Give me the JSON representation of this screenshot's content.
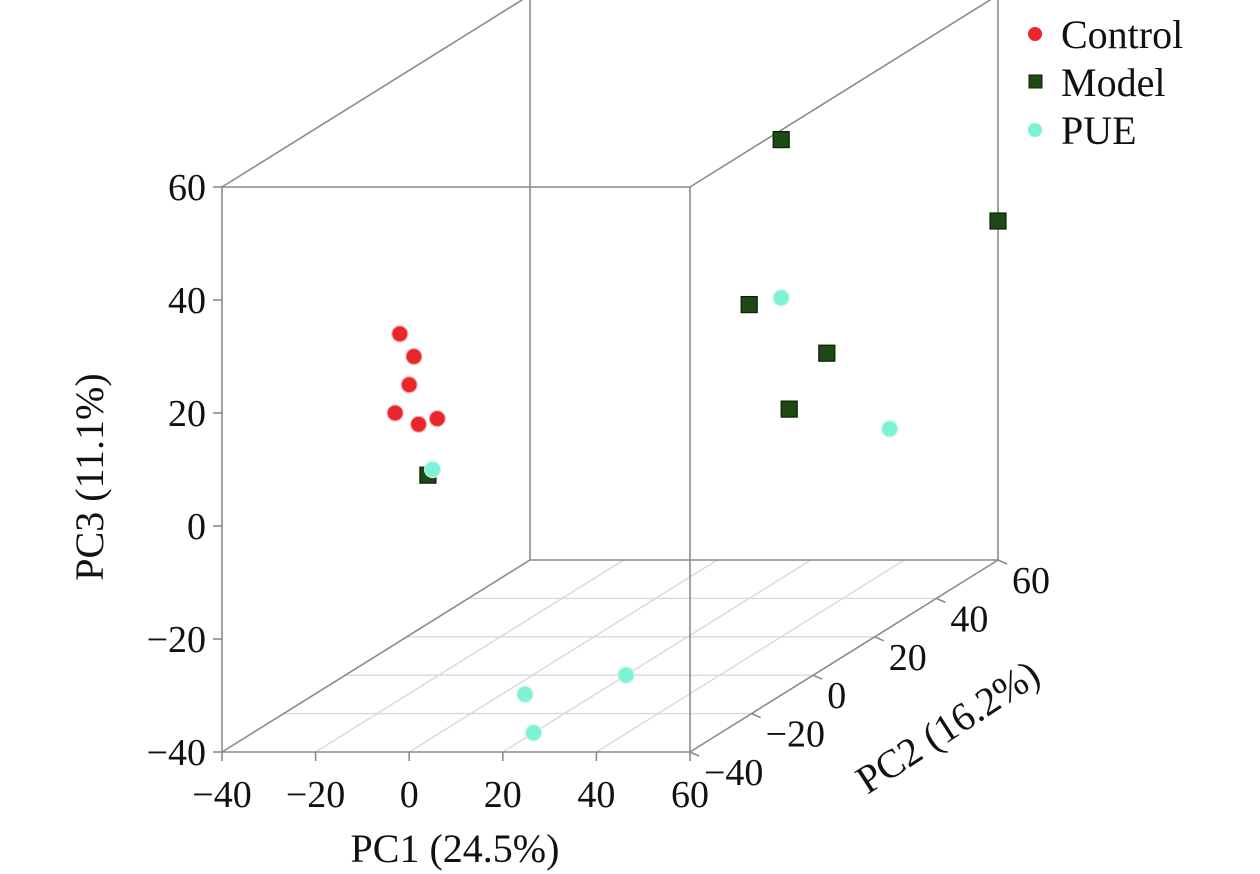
{
  "chart_data": {
    "type": "scatter3d",
    "axes": {
      "x": {
        "label": "PC1 (24.5%)",
        "range": [
          -40,
          60
        ],
        "ticks": [
          -40,
          -20,
          0,
          20,
          40,
          60
        ],
        "tick_labels": [
          "−40",
          "−20",
          "0",
          "20",
          "40",
          "60"
        ]
      },
      "y": {
        "label": "PC2 (16.2%)",
        "range": [
          -40,
          60
        ],
        "ticks": [
          -40,
          -20,
          0,
          20,
          40,
          60
        ],
        "tick_labels": [
          "−40",
          "−20",
          "0",
          "20",
          "40",
          "60"
        ]
      },
      "z": {
        "label": "PC3 (11.1%)",
        "range": [
          -40,
          60
        ],
        "ticks": [
          -40,
          -20,
          0,
          20,
          40,
          60
        ],
        "tick_labels": [
          "−40",
          "−20",
          "0",
          "20",
          "40",
          "60"
        ]
      }
    },
    "grid": "floor",
    "legend": {
      "placement": "top-right"
    },
    "series": [
      {
        "name": "Control",
        "color": "#e8262b",
        "marker": "circle",
        "points": [
          {
            "x": -2,
            "y": -40,
            "z": 34
          },
          {
            "x": 1,
            "y": -40,
            "z": 30
          },
          {
            "x": 0,
            "y": -40,
            "z": 25
          },
          {
            "x": -3,
            "y": -40,
            "z": 20
          },
          {
            "x": 2,
            "y": -40,
            "z": 18
          },
          {
            "x": 6,
            "y": -40,
            "z": 19
          }
        ]
      },
      {
        "name": "Model",
        "color": "#1d4a14",
        "marker": "square",
        "points": [
          {
            "x": 4,
            "y": -40,
            "z": 9
          },
          {
            "x": 40,
            "y": 20,
            "z": 48
          },
          {
            "x": 20,
            "y": 40,
            "z": 12
          },
          {
            "x": 45,
            "y": 15,
            "z": 2
          },
          {
            "x": 30,
            "y": 50,
            "z": 0
          },
          {
            "x": 60,
            "y": 60,
            "z": 20
          }
        ]
      },
      {
        "name": "PUE",
        "color": "#7df2d4",
        "marker": "circle",
        "points": [
          {
            "x": 5,
            "y": -40,
            "z": 10
          },
          {
            "x": 40,
            "y": 20,
            "z": 20
          },
          {
            "x": 50,
            "y": 40,
            "z": -10
          },
          {
            "x": 5,
            "y": -10,
            "z": -40
          },
          {
            "x": 20,
            "y": 0,
            "z": -40
          },
          {
            "x": 20,
            "y": -30,
            "z": -40
          }
        ]
      }
    ]
  }
}
